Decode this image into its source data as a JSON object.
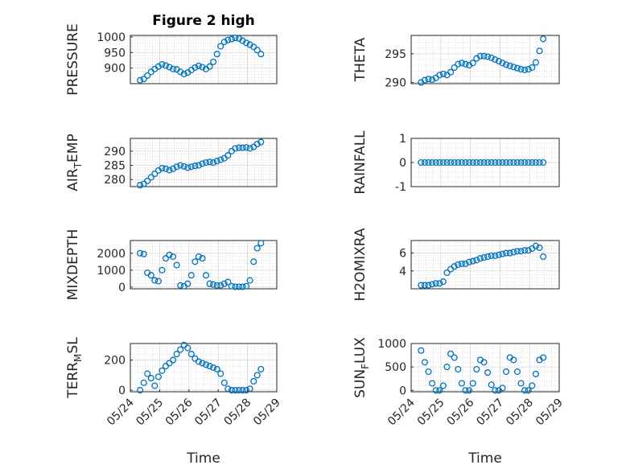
{
  "colors": {
    "series": "#0072BD",
    "axis": "#262626"
  },
  "chart_data": [
    {
      "type": "scatter",
      "title": "Figure 2 high",
      "ylabel": "PRESSURE",
      "xlabel": "",
      "show_xticks": false,
      "xlim": [
        "05/24",
        "05/29"
      ],
      "ylim": [
        850,
        1005
      ],
      "yticks": [
        900,
        950,
        1000
      ],
      "x": [
        "05/24 08:00",
        "05/24 11:00",
        "05/24 14:00",
        "05/24 17:00",
        "05/24 20:00",
        "05/24 23:00",
        "05/25 02:00",
        "05/25 05:00",
        "05/25 08:00",
        "05/25 11:00",
        "05/25 14:00",
        "05/25 17:00",
        "05/25 20:00",
        "05/25 23:00",
        "05/26 02:00",
        "05/26 05:00",
        "05/26 08:00",
        "05/26 11:00",
        "05/26 14:00",
        "05/26 17:00",
        "05/26 20:00",
        "05/26 23:00",
        "05/27 02:00",
        "05/27 05:00",
        "05/27 08:00",
        "05/27 11:00",
        "05/27 14:00",
        "05/27 17:00",
        "05/27 20:00",
        "05/27 23:00",
        "05/28 02:00",
        "05/28 05:00",
        "05/28 08:00",
        "05/28 11:00"
      ],
      "y": [
        861,
        865,
        876,
        888,
        897,
        905,
        912,
        908,
        903,
        897,
        896,
        888,
        881,
        886,
        894,
        902,
        907,
        903,
        897,
        905,
        920,
        945,
        970,
        984,
        990,
        993,
        997,
        995,
        988,
        981,
        975,
        968,
        958,
        945
      ]
    },
    {
      "type": "scatter",
      "ylabel": "THETA",
      "xlabel": "",
      "show_xticks": false,
      "xlim": [
        "05/24",
        "05/29"
      ],
      "ylim": [
        289.8,
        298.2
      ],
      "yticks": [
        290,
        295
      ],
      "x": [
        "05/24 08:00",
        "05/24 11:00",
        "05/24 14:00",
        "05/24 17:00",
        "05/24 20:00",
        "05/24 23:00",
        "05/25 02:00",
        "05/25 05:00",
        "05/25 08:00",
        "05/25 11:00",
        "05/25 14:00",
        "05/25 17:00",
        "05/25 20:00",
        "05/25 23:00",
        "05/26 02:00",
        "05/26 05:00",
        "05/26 08:00",
        "05/26 11:00",
        "05/26 14:00",
        "05/26 17:00",
        "05/26 20:00",
        "05/26 23:00",
        "05/27 02:00",
        "05/27 05:00",
        "05/27 08:00",
        "05/27 11:00",
        "05/27 14:00",
        "05/27 17:00",
        "05/27 20:00",
        "05/27 23:00",
        "05/28 02:00",
        "05/28 05:00",
        "05/28 08:00",
        "05/28 11:00"
      ],
      "y": [
        290.0,
        290.4,
        290.6,
        290.5,
        290.8,
        291.3,
        291.5,
        291.3,
        291.8,
        292.6,
        293.2,
        293.4,
        293.2,
        293.0,
        293.4,
        294.2,
        294.6,
        294.6,
        294.5,
        294.3,
        294.0,
        293.7,
        293.4,
        293.1,
        292.9,
        292.7,
        292.5,
        292.3,
        292.2,
        292.3,
        292.6,
        293.5,
        295.5,
        297.6
      ]
    },
    {
      "type": "scatter",
      "ylabel": "AIR_TEMP",
      "xlabel": "",
      "show_xticks": false,
      "xlim": [
        "05/24",
        "05/29"
      ],
      "ylim": [
        277.5,
        294.5
      ],
      "yticks": [
        280,
        285,
        290
      ],
      "x": [
        "05/24 08:00",
        "05/24 11:00",
        "05/24 14:00",
        "05/24 17:00",
        "05/24 20:00",
        "05/24 23:00",
        "05/25 02:00",
        "05/25 05:00",
        "05/25 08:00",
        "05/25 11:00",
        "05/25 14:00",
        "05/25 17:00",
        "05/25 20:00",
        "05/25 23:00",
        "05/26 02:00",
        "05/26 05:00",
        "05/26 08:00",
        "05/26 11:00",
        "05/26 14:00",
        "05/26 17:00",
        "05/26 20:00",
        "05/26 23:00",
        "05/27 02:00",
        "05/27 05:00",
        "05/27 08:00",
        "05/27 11:00",
        "05/27 14:00",
        "05/27 17:00",
        "05/27 20:00",
        "05/27 23:00",
        "05/28 02:00",
        "05/28 05:00",
        "05/28 08:00",
        "05/28 11:00"
      ],
      "y": [
        278.0,
        278.5,
        279.5,
        280.8,
        282.0,
        283.2,
        284.0,
        283.8,
        283.3,
        283.8,
        284.5,
        285.0,
        284.6,
        284.2,
        284.5,
        284.8,
        285.0,
        285.6,
        286.0,
        286.2,
        286.0,
        286.5,
        287.0,
        287.5,
        288.5,
        290.0,
        291.0,
        291.2,
        291.2,
        291.3,
        291.0,
        291.5,
        292.5,
        293.2
      ]
    },
    {
      "type": "scatter",
      "ylabel": "RAINFALL",
      "xlabel": "",
      "show_xticks": false,
      "xlim": [
        "05/24",
        "05/29"
      ],
      "ylim": [
        -1,
        1
      ],
      "yticks": [
        -1,
        0,
        1
      ],
      "x": [
        "05/24 08:00",
        "05/24 11:00",
        "05/24 14:00",
        "05/24 17:00",
        "05/24 20:00",
        "05/24 23:00",
        "05/25 02:00",
        "05/25 05:00",
        "05/25 08:00",
        "05/25 11:00",
        "05/25 14:00",
        "05/25 17:00",
        "05/25 20:00",
        "05/25 23:00",
        "05/26 02:00",
        "05/26 05:00",
        "05/26 08:00",
        "05/26 11:00",
        "05/26 14:00",
        "05/26 17:00",
        "05/26 20:00",
        "05/26 23:00",
        "05/27 02:00",
        "05/27 05:00",
        "05/27 08:00",
        "05/27 11:00",
        "05/27 14:00",
        "05/27 17:00",
        "05/27 20:00",
        "05/27 23:00",
        "05/28 02:00",
        "05/28 05:00",
        "05/28 08:00",
        "05/28 11:00"
      ],
      "y": [
        0,
        0,
        0,
        0,
        0,
        0,
        0,
        0,
        0,
        0,
        0,
        0,
        0,
        0,
        0,
        0,
        0,
        0,
        0,
        0,
        0,
        0,
        0,
        0,
        0,
        0,
        0,
        0,
        0,
        0,
        0,
        0,
        0,
        0
      ]
    },
    {
      "type": "scatter",
      "ylabel": "MIXDEPTH",
      "xlabel": "",
      "show_xticks": false,
      "xlim": [
        "05/24",
        "05/29"
      ],
      "ylim": [
        -100,
        2750
      ],
      "yticks": [
        0,
        1000,
        2000
      ],
      "x": [
        "05/24 08:00",
        "05/24 11:00",
        "05/24 14:00",
        "05/24 17:00",
        "05/24 20:00",
        "05/24 23:00",
        "05/25 02:00",
        "05/25 05:00",
        "05/25 08:00",
        "05/25 11:00",
        "05/25 14:00",
        "05/25 17:00",
        "05/25 20:00",
        "05/25 23:00",
        "05/26 02:00",
        "05/26 05:00",
        "05/26 08:00",
        "05/26 11:00",
        "05/26 14:00",
        "05/26 17:00",
        "05/26 20:00",
        "05/26 23:00",
        "05/27 02:00",
        "05/27 05:00",
        "05/27 08:00",
        "05/27 11:00",
        "05/27 14:00",
        "05/27 17:00",
        "05/27 20:00",
        "05/27 23:00",
        "05/28 02:00",
        "05/28 05:00",
        "05/28 08:00",
        "05/28 11:00"
      ],
      "y": [
        2000,
        1950,
        850,
        700,
        400,
        350,
        1000,
        1700,
        1900,
        1800,
        1300,
        100,
        50,
        200,
        700,
        1500,
        1800,
        1700,
        700,
        200,
        150,
        100,
        100,
        200,
        300,
        50,
        20,
        20,
        20,
        50,
        400,
        1500,
        2300,
        2600
      ]
    },
    {
      "type": "scatter",
      "ylabel": "H2OMIXRA",
      "xlabel": "",
      "show_xticks": false,
      "xlim": [
        "05/24",
        "05/29"
      ],
      "ylim": [
        2.0,
        7.4
      ],
      "yticks": [
        4,
        6
      ],
      "x": [
        "05/24 08:00",
        "05/24 11:00",
        "05/24 14:00",
        "05/24 17:00",
        "05/24 20:00",
        "05/24 23:00",
        "05/25 02:00",
        "05/25 05:00",
        "05/25 08:00",
        "05/25 11:00",
        "05/25 14:00",
        "05/25 17:00",
        "05/25 20:00",
        "05/25 23:00",
        "05/26 02:00",
        "05/26 05:00",
        "05/26 08:00",
        "05/26 11:00",
        "05/26 14:00",
        "05/26 17:00",
        "05/26 20:00",
        "05/26 23:00",
        "05/27 02:00",
        "05/27 05:00",
        "05/27 08:00",
        "05/27 11:00",
        "05/27 14:00",
        "05/27 17:00",
        "05/27 20:00",
        "05/27 23:00",
        "05/28 02:00",
        "05/28 05:00",
        "05/28 08:00",
        "05/28 11:00"
      ],
      "y": [
        2.4,
        2.4,
        2.4,
        2.5,
        2.6,
        2.6,
        2.8,
        3.8,
        4.2,
        4.5,
        4.7,
        4.8,
        4.8,
        5.0,
        5.1,
        5.2,
        5.4,
        5.5,
        5.6,
        5.7,
        5.7,
        5.8,
        5.9,
        6.0,
        6.0,
        6.1,
        6.2,
        6.2,
        6.3,
        6.3,
        6.5,
        6.8,
        6.6,
        5.6
      ]
    },
    {
      "type": "scatter",
      "ylabel": "TERR_MSL",
      "xlabel": "Time",
      "show_xticks": true,
      "xlim": [
        "05/24",
        "05/29"
      ],
      "ylim": [
        -10,
        310
      ],
      "yticks": [
        0,
        200
      ],
      "xticks": [
        "05/24",
        "05/25",
        "05/26",
        "05/27",
        "05/28",
        "05/29"
      ],
      "x": [
        "05/24 08:00",
        "05/24 11:00",
        "05/24 14:00",
        "05/24 17:00",
        "05/24 20:00",
        "05/24 23:00",
        "05/25 02:00",
        "05/25 05:00",
        "05/25 08:00",
        "05/25 11:00",
        "05/25 14:00",
        "05/25 17:00",
        "05/25 20:00",
        "05/25 23:00",
        "05/26 02:00",
        "05/26 05:00",
        "05/26 08:00",
        "05/26 11:00",
        "05/26 14:00",
        "05/26 17:00",
        "05/26 20:00",
        "05/26 23:00",
        "05/27 02:00",
        "05/27 05:00",
        "05/27 08:00",
        "05/27 11:00",
        "05/27 14:00",
        "05/27 17:00",
        "05/27 20:00",
        "05/27 23:00",
        "05/28 02:00",
        "05/28 05:00",
        "05/28 08:00",
        "05/28 11:00"
      ],
      "y": [
        0,
        50,
        110,
        80,
        30,
        90,
        130,
        160,
        180,
        200,
        240,
        270,
        300,
        280,
        240,
        210,
        190,
        180,
        170,
        160,
        150,
        140,
        110,
        50,
        10,
        0,
        0,
        0,
        0,
        0,
        10,
        60,
        100,
        140
      ]
    },
    {
      "type": "scatter",
      "ylabel": "SUN_FLUX",
      "xlabel": "Time",
      "show_xticks": true,
      "xlim": [
        "05/24",
        "05/29"
      ],
      "ylim": [
        -30,
        1000
      ],
      "yticks": [
        0,
        500,
        1000
      ],
      "xticks": [
        "05/24",
        "05/25",
        "05/26",
        "05/27",
        "05/28",
        "05/29"
      ],
      "x": [
        "05/24 08:00",
        "05/24 11:00",
        "05/24 14:00",
        "05/24 17:00",
        "05/24 20:00",
        "05/24 23:00",
        "05/25 02:00",
        "05/25 05:00",
        "05/25 08:00",
        "05/25 11:00",
        "05/25 14:00",
        "05/25 17:00",
        "05/25 20:00",
        "05/25 23:00",
        "05/26 02:00",
        "05/26 05:00",
        "05/26 08:00",
        "05/26 11:00",
        "05/26 14:00",
        "05/26 17:00",
        "05/26 20:00",
        "05/26 23:00",
        "05/27 02:00",
        "05/27 05:00",
        "05/27 08:00",
        "05/27 11:00",
        "05/27 14:00",
        "05/27 17:00",
        "05/27 20:00",
        "05/27 23:00",
        "05/28 02:00",
        "05/28 05:00",
        "05/28 08:00",
        "05/28 11:00"
      ],
      "y": [
        850,
        600,
        400,
        150,
        0,
        0,
        100,
        500,
        780,
        700,
        450,
        150,
        0,
        0,
        150,
        450,
        650,
        600,
        380,
        120,
        0,
        0,
        50,
        400,
        700,
        650,
        400,
        150,
        0,
        0,
        100,
        350,
        650,
        700
      ]
    }
  ]
}
